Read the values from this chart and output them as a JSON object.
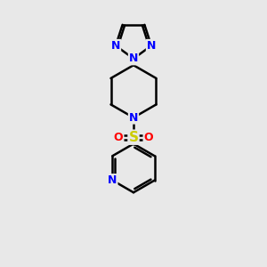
{
  "background_color": "#e8e8e8",
  "bond_color": "#000000",
  "bond_width": 1.8,
  "atom_colors": {
    "N": "#0000ff",
    "S": "#cccc00",
    "O": "#ff0000",
    "C": "#000000"
  },
  "font_size": 9,
  "figsize": [
    3.0,
    3.0
  ],
  "dpi": 100
}
